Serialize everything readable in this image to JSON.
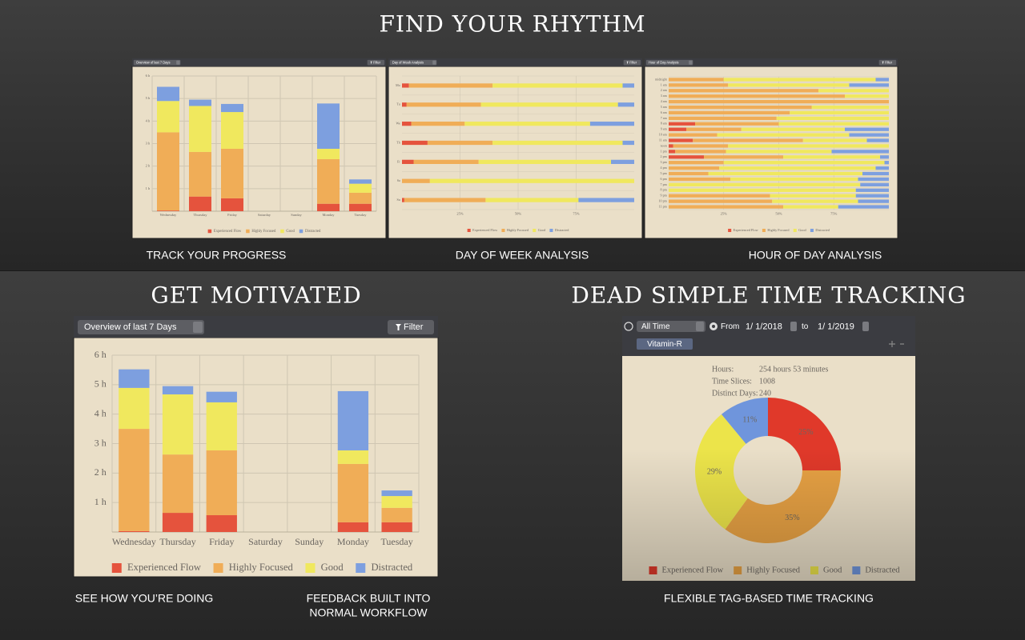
{
  "headings": {
    "top": "FIND YOUR RHYTHM",
    "left": "GET MOTIVATED",
    "right": "DEAD SIMPLE TIME TRACKING"
  },
  "captions": [
    "TRACK YOUR PROGRESS",
    "DAY OF WEEK ANALYSIS",
    "HOUR OF DAY ANALYSIS",
    "SEE HOW YOU’RE DOING",
    "FEEDBACK BUILT INTO",
    "NORMAL WORKFLOW",
    "FLEXIBLE TAG-BASED TIME TRACKING"
  ],
  "chart_data": [
    {
      "type": "bar",
      "dropdown": "Overview of last 7 Days",
      "filter": "Filter",
      "categories": [
        "Wednesday",
        "Thursday",
        "Friday",
        "Saturday",
        "Sunday",
        "Monday",
        "Tuesday"
      ],
      "series": [
        {
          "name": "Experienced Flow",
          "color": "#e5533d",
          "values": [
            0.03,
            0.65,
            0.57,
            0,
            0,
            0.33,
            0.33
          ]
        },
        {
          "name": "Highly Focused",
          "color": "#f0ad57",
          "values": [
            3.47,
            1.98,
            2.2,
            0,
            0,
            1.98,
            0.49
          ]
        },
        {
          "name": "Good",
          "color": "#f0e85e",
          "values": [
            1.39,
            2.04,
            1.63,
            0,
            0,
            0.46,
            0.4
          ]
        },
        {
          "name": "Distracted",
          "color": "#7d9fdf",
          "values": [
            0.63,
            0.28,
            0.36,
            0,
            0,
            2.01,
            0.19
          ]
        }
      ],
      "ylim": [
        0,
        6
      ],
      "yticks": [
        {
          "value": 1,
          "label": "1 h"
        },
        {
          "value": 2,
          "label": "2 h"
        },
        {
          "value": 3,
          "label": "3 h"
        },
        {
          "value": 4,
          "label": "4 h"
        },
        {
          "value": 5,
          "label": "5 h"
        },
        {
          "value": 6,
          "label": "6 h"
        }
      ],
      "grid": true
    },
    {
      "type": "barh",
      "dropdown": "Day of Week Analysis",
      "filter": "Filter",
      "categories": [
        "Mo",
        "Tu",
        "We",
        "Th",
        "Fr",
        "Sa",
        "Su"
      ],
      "series": [
        {
          "name": "Experienced Flow",
          "color": "#e5533d",
          "values": [
            3,
            2,
            4,
            11,
            5,
            0,
            1
          ]
        },
        {
          "name": "Highly Focused",
          "color": "#f0ad57",
          "values": [
            36,
            32,
            23,
            28,
            28,
            12,
            35
          ]
        },
        {
          "name": "Good",
          "color": "#f0e85e",
          "values": [
            56,
            59,
            54,
            56,
            57,
            88,
            40
          ]
        },
        {
          "name": "Distracted",
          "color": "#7d9fdf",
          "values": [
            5,
            7,
            19,
            5,
            10,
            0,
            24
          ]
        }
      ],
      "xlim": [
        0,
        100
      ],
      "xticks": [
        {
          "value": 25,
          "label": "25%"
        },
        {
          "value": 50,
          "label": "50%"
        },
        {
          "value": 75,
          "label": "75%"
        }
      ],
      "grid": true
    },
    {
      "type": "barh",
      "dropdown": "Hour of Day Analysis",
      "filter": "Filter",
      "categories": [
        "midnight",
        "1 am",
        "2 am",
        "3 am",
        "4 am",
        "5 am",
        "6 am",
        "7 am",
        "8 am",
        "9 am",
        "10 am",
        "11 am",
        "noon",
        "1 pm",
        "2 pm",
        "3 pm",
        "4 pm",
        "5 pm",
        "6 pm",
        "7 pm",
        "8 pm",
        "9 pm",
        "10 pm",
        "11 pm"
      ],
      "series": [
        {
          "name": "Experienced Flow",
          "color": "#e5533d",
          "values": [
            0,
            0,
            0,
            0,
            0,
            0,
            0,
            0,
            12,
            8,
            0,
            11,
            2,
            3,
            16,
            0,
            0,
            0,
            0,
            0,
            0,
            0,
            0,
            0
          ]
        },
        {
          "name": "Highly Focused",
          "color": "#f0ad57",
          "values": [
            25,
            27,
            68,
            80,
            100,
            65,
            55,
            49,
            38,
            25,
            22,
            50,
            25,
            23,
            36,
            25,
            23,
            18,
            28,
            0,
            0,
            46,
            47,
            52
          ]
        },
        {
          "name": "Good",
          "color": "#f0e85e",
          "values": [
            69,
            55,
            32,
            20,
            0,
            35,
            45,
            51,
            50,
            47,
            60,
            29,
            73,
            48,
            44,
            73,
            71,
            70,
            58,
            87,
            85,
            39,
            39,
            25
          ]
        },
        {
          "name": "Distracted",
          "color": "#7d9fdf",
          "values": [
            6,
            18,
            0,
            0,
            0,
            0,
            0,
            0,
            0,
            20,
            18,
            10,
            0,
            26,
            4,
            2,
            6,
            12,
            14,
            13,
            15,
            15,
            14,
            23
          ]
        }
      ],
      "xlim": [
        0,
        100
      ],
      "xticks": [
        {
          "value": 25,
          "label": "25%"
        },
        {
          "value": 50,
          "label": "50%"
        },
        {
          "value": 75,
          "label": "75%"
        }
      ],
      "grid": true
    },
    {
      "type": "pie",
      "categories": [
        "Experienced Flow",
        "Highly Focused",
        "Good",
        "Distracted"
      ],
      "colors": [
        "#e0392a",
        "#e8a244",
        "#ece44a",
        "#6f95dc"
      ],
      "values": [
        25,
        35,
        29,
        11
      ],
      "value_labels": [
        "25%",
        "35%",
        "29%",
        "11%"
      ]
    }
  ],
  "tracker": {
    "range": "All Time",
    "from_label": "From",
    "from": "1/ 1/2018",
    "to_label": "to",
    "to": "1/ 1/2019",
    "tag": "Vitamin-R",
    "stats": [
      {
        "label": "Hours:",
        "value": "254 hours 53 minutes"
      },
      {
        "label": "Time Slices:",
        "value": 1008
      },
      {
        "label": "Distinct Days:",
        "value": 240
      }
    ]
  }
}
